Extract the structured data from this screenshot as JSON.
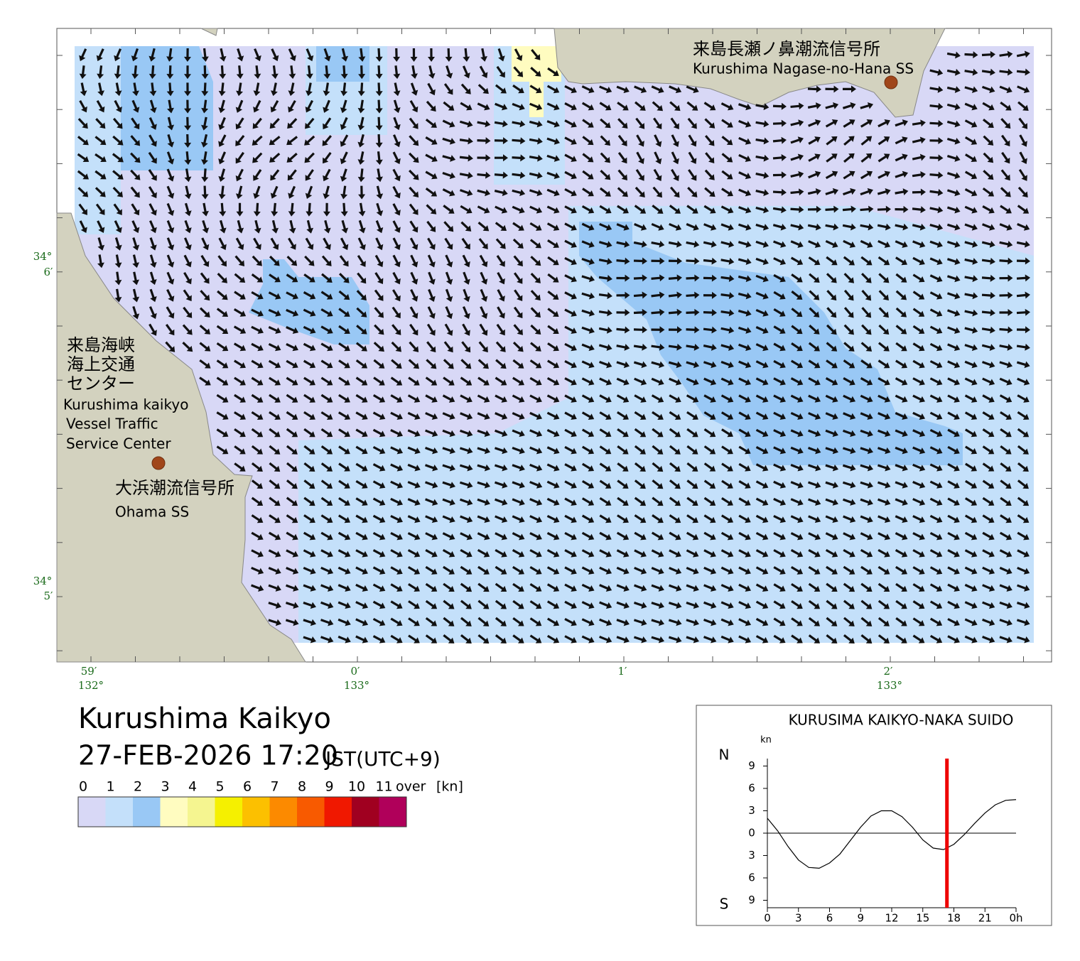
{
  "title": "Kurushima Kaikyo",
  "datetime": "27-FEB-2026 17:20",
  "timezone": "JST(UTC+9)",
  "map": {
    "nagase": {
      "ja": "来島長瀬ノ鼻潮流信号所",
      "en": "Kurushima Nagase-no-Hana SS"
    },
    "center": {
      "ja": [
        "来島海峡",
        "海上交通",
        "センター"
      ],
      "en": [
        "Kurushima kaikyo",
        "Vessel Traffic",
        "Service Center"
      ]
    },
    "ohama": {
      "ja": "大浜潮流信号所",
      "en": "Ohama SS"
    },
    "lat_ticks": [
      {
        "deg": "34°",
        "min": "6′"
      },
      {
        "deg": "34°",
        "min": "5′"
      }
    ],
    "lon_ticks": [
      {
        "min": "59′",
        "deg": "132°"
      },
      {
        "min": "0′",
        "deg": "133°"
      },
      {
        "min": "1′"
      },
      {
        "min": "2′",
        "deg": "133°"
      }
    ]
  },
  "legend": {
    "labels": [
      0,
      1,
      2,
      3,
      4,
      5,
      6,
      7,
      8,
      9,
      10,
      11
    ],
    "over": "over",
    "unit": "[kn]",
    "colors": [
      "#d8d8f6",
      "#c4e0fa",
      "#99c8f5",
      "#fffcc0",
      "#f5f590",
      "#f5f000",
      "#fcc000",
      "#fc8a00",
      "#f85a00",
      "#f01800",
      "#a00020",
      "#b0005a"
    ]
  },
  "tide_chart": {
    "type": "line",
    "title": "KURUSIMA KAIKYO-NAKA SUIDO",
    "y_unit": "kn",
    "north": "N",
    "south": "S",
    "x": [
      0,
      1,
      2,
      3,
      4,
      5,
      6,
      7,
      8,
      9,
      10,
      11,
      12,
      13,
      14,
      15,
      16,
      17,
      18,
      19,
      20,
      21,
      22,
      23,
      24
    ],
    "values": [
      2.0,
      0.3,
      -1.8,
      -3.6,
      -4.6,
      -4.7,
      -4.0,
      -2.8,
      -1.0,
      0.8,
      2.3,
      3.0,
      3.0,
      2.2,
      0.8,
      -0.9,
      -2.0,
      -2.2,
      -1.5,
      -0.2,
      1.3,
      2.7,
      3.8,
      4.4,
      4.5
    ],
    "color": "#000000",
    "now": 17.33,
    "now_color": "#ee0000",
    "xlim": [
      0,
      24
    ],
    "ylim": [
      -10,
      10
    ],
    "xticks": [
      0,
      3,
      6,
      9,
      12,
      15,
      18,
      21,
      {
        "value": 24,
        "label": "0h"
      }
    ],
    "yticks": [
      9,
      6,
      3,
      0,
      {
        "value": -3,
        "label": "3"
      },
      {
        "value": -6,
        "label": "6"
      },
      {
        "value": -9,
        "label": "9"
      }
    ]
  }
}
